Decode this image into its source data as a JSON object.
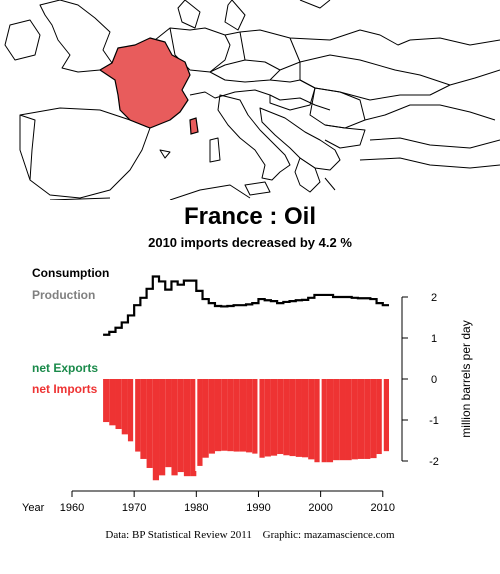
{
  "header": {
    "title": "France :  Oil",
    "subtitle": "2010 imports decreased by 4.2 %"
  },
  "map": {
    "highlight_color": "#e85c5c",
    "outline_color": "#000000"
  },
  "footer": {
    "source": "Data: BP Statistical Review 2011",
    "graphic": "Graphic: mazamascience.com"
  },
  "chart_data": {
    "type": "bar",
    "title": "France :  Oil",
    "subtitle": "2010 imports decreased by 4.2 %",
    "xlabel": "Year",
    "ylabel": "million barrels per day",
    "xlim": [
      1960,
      2011
    ],
    "ylim": [
      -2.5,
      2.5
    ],
    "x_ticks": [
      "1960",
      "1970",
      "1980",
      "1990",
      "2000",
      "2010"
    ],
    "x_tick_values": [
      1960,
      1970,
      1980,
      1990,
      2000,
      2010
    ],
    "y_ticks": [
      "-2",
      "-1",
      "0",
      "1",
      "2"
    ],
    "y_tick_values": [
      -2,
      -1,
      0,
      1,
      2
    ],
    "legend": {
      "consumption_label": "Consumption",
      "production_label": "Production",
      "exports_label": "net Exports",
      "imports_label": "net Imports"
    },
    "colors": {
      "consumption": "#000000",
      "production": "#808080",
      "exports": "#1a8a4a",
      "imports": "#ee3333"
    },
    "years": [
      1965,
      1966,
      1967,
      1968,
      1969,
      1970,
      1971,
      1972,
      1973,
      1974,
      1975,
      1976,
      1977,
      1978,
      1979,
      1980,
      1981,
      1982,
      1983,
      1984,
      1985,
      1986,
      1987,
      1988,
      1989,
      1990,
      1991,
      1992,
      1993,
      1994,
      1995,
      1996,
      1997,
      1998,
      1999,
      2000,
      2001,
      2002,
      2003,
      2004,
      2005,
      2006,
      2007,
      2008,
      2009,
      2010
    ],
    "series": [
      {
        "name": "Consumption",
        "values": [
          1.08,
          1.15,
          1.25,
          1.38,
          1.55,
          1.8,
          1.98,
          2.2,
          2.5,
          2.38,
          2.18,
          2.38,
          2.3,
          2.4,
          2.4,
          2.15,
          1.95,
          1.85,
          1.78,
          1.77,
          1.78,
          1.8,
          1.8,
          1.82,
          1.85,
          1.95,
          1.92,
          1.9,
          1.85,
          1.88,
          1.9,
          1.92,
          1.93,
          1.98,
          2.05,
          2.05,
          2.05,
          2.0,
          2.0,
          2.0,
          1.98,
          1.97,
          1.97,
          1.95,
          1.85,
          1.8
        ]
      },
      {
        "name": "net Imports",
        "values": [
          -1.05,
          -1.13,
          -1.22,
          -1.35,
          -1.52,
          -1.77,
          -1.95,
          -2.17,
          -2.47,
          -2.35,
          -2.15,
          -2.35,
          -2.27,
          -2.37,
          -2.37,
          -2.12,
          -1.92,
          -1.82,
          -1.76,
          -1.75,
          -1.76,
          -1.77,
          -1.77,
          -1.79,
          -1.82,
          -1.92,
          -1.89,
          -1.87,
          -1.83,
          -1.86,
          -1.88,
          -1.9,
          -1.91,
          -1.96,
          -2.03,
          -2.03,
          -2.03,
          -1.98,
          -1.98,
          -1.98,
          -1.96,
          -1.95,
          -1.95,
          -1.93,
          -1.83,
          -1.76
        ]
      }
    ]
  }
}
